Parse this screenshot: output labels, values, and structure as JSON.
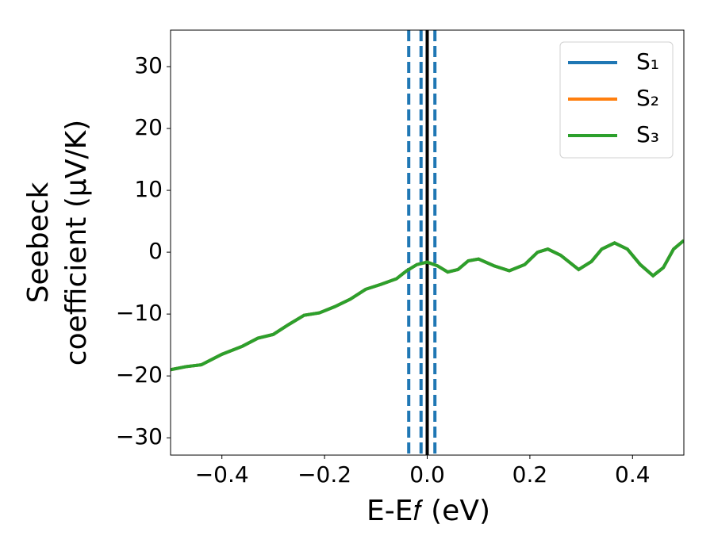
{
  "chart_data": {
    "type": "line",
    "xlabel": "E-E𝑓 (eV)",
    "ylabel": [
      "Seebeck",
      "coefficient  (μV/K)"
    ],
    "x": [
      -0.5,
      -0.47,
      -0.44,
      -0.4,
      -0.36,
      -0.33,
      -0.3,
      -0.27,
      -0.24,
      -0.21,
      -0.18,
      -0.15,
      -0.12,
      -0.09,
      -0.06,
      -0.04,
      -0.02,
      0.0,
      0.02,
      0.04,
      0.06,
      0.08,
      0.1,
      0.13,
      0.16,
      0.19,
      0.215,
      0.235,
      0.26,
      0.295,
      0.32,
      0.34,
      0.365,
      0.39,
      0.415,
      0.44,
      0.46,
      0.48,
      0.5
    ],
    "series": [
      {
        "name": "S₁",
        "color": "#1f77b4",
        "values": [
          -19.0,
          -18.5,
          -18.2,
          -16.5,
          -15.2,
          -13.9,
          -13.3,
          -11.7,
          -10.2,
          -9.8,
          -8.8,
          -7.6,
          -6.0,
          -5.2,
          -4.3,
          -3.0,
          -2.0,
          -1.6,
          -2.2,
          -3.2,
          -2.8,
          -1.4,
          -1.1,
          -2.2,
          -3.0,
          -2.0,
          0.0,
          0.5,
          -0.5,
          -2.8,
          -1.5,
          0.5,
          1.5,
          0.5,
          -2.0,
          -3.8,
          -2.5,
          0.5,
          1.9
        ]
      },
      {
        "name": "S₂",
        "color": "#ff7f0e",
        "values": [
          -19.0,
          -18.5,
          -18.2,
          -16.5,
          -15.2,
          -13.9,
          -13.3,
          -11.7,
          -10.2,
          -9.8,
          -8.8,
          -7.6,
          -6.0,
          -5.2,
          -4.3,
          -3.0,
          -2.0,
          -1.6,
          -2.2,
          -3.2,
          -2.8,
          -1.4,
          -1.1,
          -2.2,
          -3.0,
          -2.0,
          0.0,
          0.5,
          -0.5,
          -2.8,
          -1.5,
          0.5,
          1.5,
          0.5,
          -2.0,
          -3.8,
          -2.5,
          0.5,
          1.9
        ]
      },
      {
        "name": "S₃",
        "color": "#2ca02c",
        "values": [
          -19.0,
          -18.5,
          -18.2,
          -16.5,
          -15.2,
          -13.9,
          -13.3,
          -11.7,
          -10.2,
          -9.8,
          -8.8,
          -7.6,
          -6.0,
          -5.2,
          -4.3,
          -3.0,
          -2.0,
          -1.6,
          -2.2,
          -3.2,
          -2.8,
          -1.4,
          -1.1,
          -2.2,
          -3.0,
          -2.0,
          0.0,
          0.5,
          -0.5,
          -2.8,
          -1.5,
          0.5,
          1.5,
          0.5,
          -2.0,
          -3.8,
          -2.5,
          0.5,
          1.9
        ]
      }
    ],
    "vlines": [
      {
        "x": -0.036,
        "color": "#1f77b4",
        "style": "dashed"
      },
      {
        "x": -0.012,
        "color": "#1f77b4",
        "style": "dashed"
      },
      {
        "x": 0.015,
        "color": "#1f77b4",
        "style": "dashed"
      },
      {
        "x": 0,
        "color": "#000000",
        "style": "solid"
      }
    ],
    "xlim": [
      -0.5,
      0.5
    ],
    "xticks": [
      {
        "value": -0.4,
        "label": "−0.4"
      },
      {
        "value": -0.2,
        "label": "−0.2"
      },
      {
        "value": 0,
        "label": "0.0"
      },
      {
        "value": 0.2,
        "label": "0.2"
      },
      {
        "value": 0.4,
        "label": "0.4"
      }
    ],
    "ylim": [
      -32.8,
      35.9
    ],
    "yticks": [
      {
        "value": -30,
        "label": "−30"
      },
      {
        "value": -20,
        "label": "−20"
      },
      {
        "value": -10,
        "label": "−10"
      },
      0,
      10,
      20,
      30
    ],
    "grid": false,
    "legend": "upper right"
  }
}
